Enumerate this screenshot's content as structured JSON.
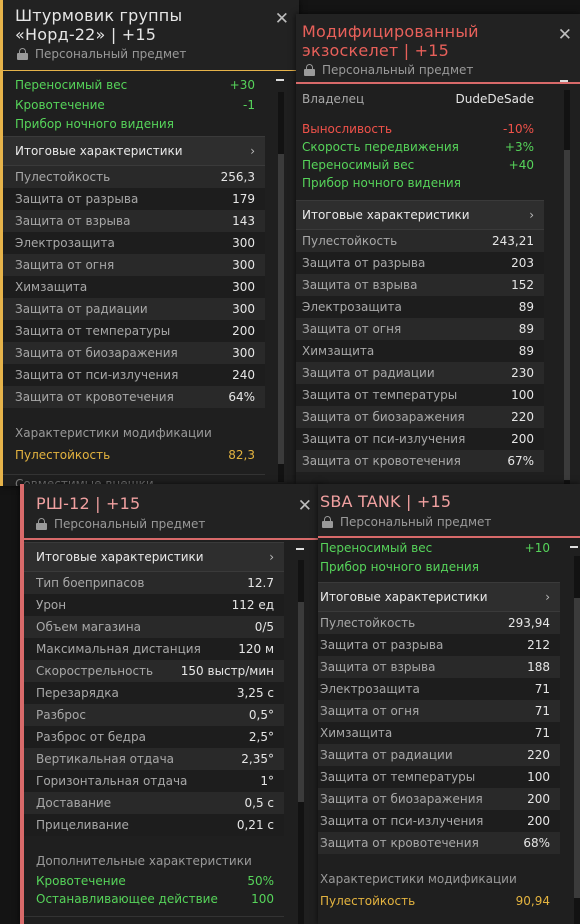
{
  "panel1": {
    "title_line1": "Штурмовик группы",
    "title_line2": "«Норд-22» | +15",
    "personal": "Персональный предмет",
    "bonus_rows": [
      {
        "label": "Переносимый вес",
        "value": "+30"
      },
      {
        "label": "Кровотечение",
        "value": "-1"
      },
      {
        "label": "Прибор ночного видения",
        "value": ""
      }
    ],
    "section_title": "Итоговые характеристики",
    "stats": [
      {
        "label": "Пулестойкость",
        "value": "256,3"
      },
      {
        "label": "Защита от разрыва",
        "value": "179"
      },
      {
        "label": "Защита от взрыва",
        "value": "143"
      },
      {
        "label": "Электрозащита",
        "value": "300"
      },
      {
        "label": "Защита от огня",
        "value": "300"
      },
      {
        "label": "Химзащита",
        "value": "300"
      },
      {
        "label": "Защита от радиации",
        "value": "300"
      },
      {
        "label": "Защита от температуры",
        "value": "200"
      },
      {
        "label": "Защита от биозаражения",
        "value": "300"
      },
      {
        "label": "Защита от пси-излучения",
        "value": "240"
      },
      {
        "label": "Защита от кровотечения",
        "value": "64%"
      }
    ],
    "mod_title": "Характеристики модификации",
    "mod_rows": [
      {
        "label": "Пулестойкость",
        "value": "82,3"
      }
    ],
    "cut_text": "Совместимые внешки"
  },
  "panel2": {
    "title_line1": "Модифицированный",
    "title_line2": "экзоскелет | +15",
    "personal": "Персональный предмет",
    "owner_label": "Владелец",
    "owner_value": "DudeDeSade",
    "bonus_rows": [
      {
        "label": "Выносливость",
        "value": "-10%",
        "color": "red"
      },
      {
        "label": "Скорость передвижения",
        "value": "+3%",
        "color": "green"
      },
      {
        "label": "Переносимый вес",
        "value": "+40",
        "color": "green"
      },
      {
        "label": "Прибор ночного видения",
        "value": "",
        "color": "green"
      }
    ],
    "section_title": "Итоговые характеристики",
    "stats": [
      {
        "label": "Пулестойкость",
        "value": "243,21"
      },
      {
        "label": "Защита от разрыва",
        "value": "203"
      },
      {
        "label": "Защита от взрыва",
        "value": "152"
      },
      {
        "label": "Электрозащита",
        "value": "89"
      },
      {
        "label": "Защита от огня",
        "value": "89"
      },
      {
        "label": "Химзащита",
        "value": "89"
      },
      {
        "label": "Защита от радиации",
        "value": "230"
      },
      {
        "label": "Защита от температуры",
        "value": "100"
      },
      {
        "label": "Защита от биозаражения",
        "value": "220"
      },
      {
        "label": "Защита от пси-излучения",
        "value": "200"
      },
      {
        "label": "Защита от кровотечения",
        "value": "67%"
      }
    ]
  },
  "panel3": {
    "title": "РШ-12 | +15",
    "personal": "Персональный предмет",
    "section_title": "Итоговые характеристики",
    "stats": [
      {
        "label": "Тип боеприпасов",
        "value": "12.7"
      },
      {
        "label": "Урон",
        "value": "112 ед"
      },
      {
        "label": "Объем магазина",
        "value": "0/5"
      },
      {
        "label": "Максимальная дистанция",
        "value": "120 м"
      },
      {
        "label": "Скорострельность",
        "value": "150 выстр/мин"
      },
      {
        "label": "Перезарядка",
        "value": "3,25 с"
      },
      {
        "label": "Разброс",
        "value": "0,5°"
      },
      {
        "label": "Разброс от бедра",
        "value": "2,5°"
      },
      {
        "label": "Вертикальная отдача",
        "value": "2,35°"
      },
      {
        "label": "Горизонтальная отдача",
        "value": "1°"
      },
      {
        "label": "Доставание",
        "value": "0,5 с"
      },
      {
        "label": "Прицеливание",
        "value": "0,21 с"
      }
    ],
    "extra_title": "Дополнительные характеристики",
    "extra_rows": [
      {
        "label": "Кровотечение",
        "value": "50%"
      },
      {
        "label": "Останавливающее действие",
        "value": "100"
      }
    ]
  },
  "panel4": {
    "title": "SBA TANK | +15",
    "personal": "Персональный предмет",
    "bonus_rows": [
      {
        "label": "Переносимый вес",
        "value": "+10"
      },
      {
        "label": "Прибор ночного видения",
        "value": ""
      }
    ],
    "section_title": "Итоговые характеристики",
    "stats": [
      {
        "label": "Пулестойкость",
        "value": "293,94"
      },
      {
        "label": "Защита от разрыва",
        "value": "212"
      },
      {
        "label": "Защита от взрыва",
        "value": "188"
      },
      {
        "label": "Электрозащита",
        "value": "71"
      },
      {
        "label": "Защита от огня",
        "value": "71"
      },
      {
        "label": "Химзащита",
        "value": "71"
      },
      {
        "label": "Защита от радиации",
        "value": "220"
      },
      {
        "label": "Защита от температуры",
        "value": "100"
      },
      {
        "label": "Защита от биозаражения",
        "value": "200"
      },
      {
        "label": "Защита от пси-излучения",
        "value": "200"
      },
      {
        "label": "Защита от кровотечения",
        "value": "68%"
      }
    ],
    "mod_title": "Характеристики модификации",
    "mod_rows": [
      {
        "label": "Пулестойкость",
        "value": "90,94"
      }
    ]
  },
  "colors": {
    "positive": "#56d45a",
    "negative": "#f0524a",
    "modification": "#e3b33f",
    "title_default": "#e6e6e6",
    "title_exo": "#e8605a",
    "title_weapon": "#f0a0a0",
    "title_sba": "#f0a0a0",
    "accent_gold": "#e6b34a",
    "accent_pink": "#d86a6a"
  },
  "icons": {
    "close": "close-icon",
    "lock": "lock-icon",
    "chevron": "chevron-right-icon",
    "collapse": "minus-icon"
  }
}
